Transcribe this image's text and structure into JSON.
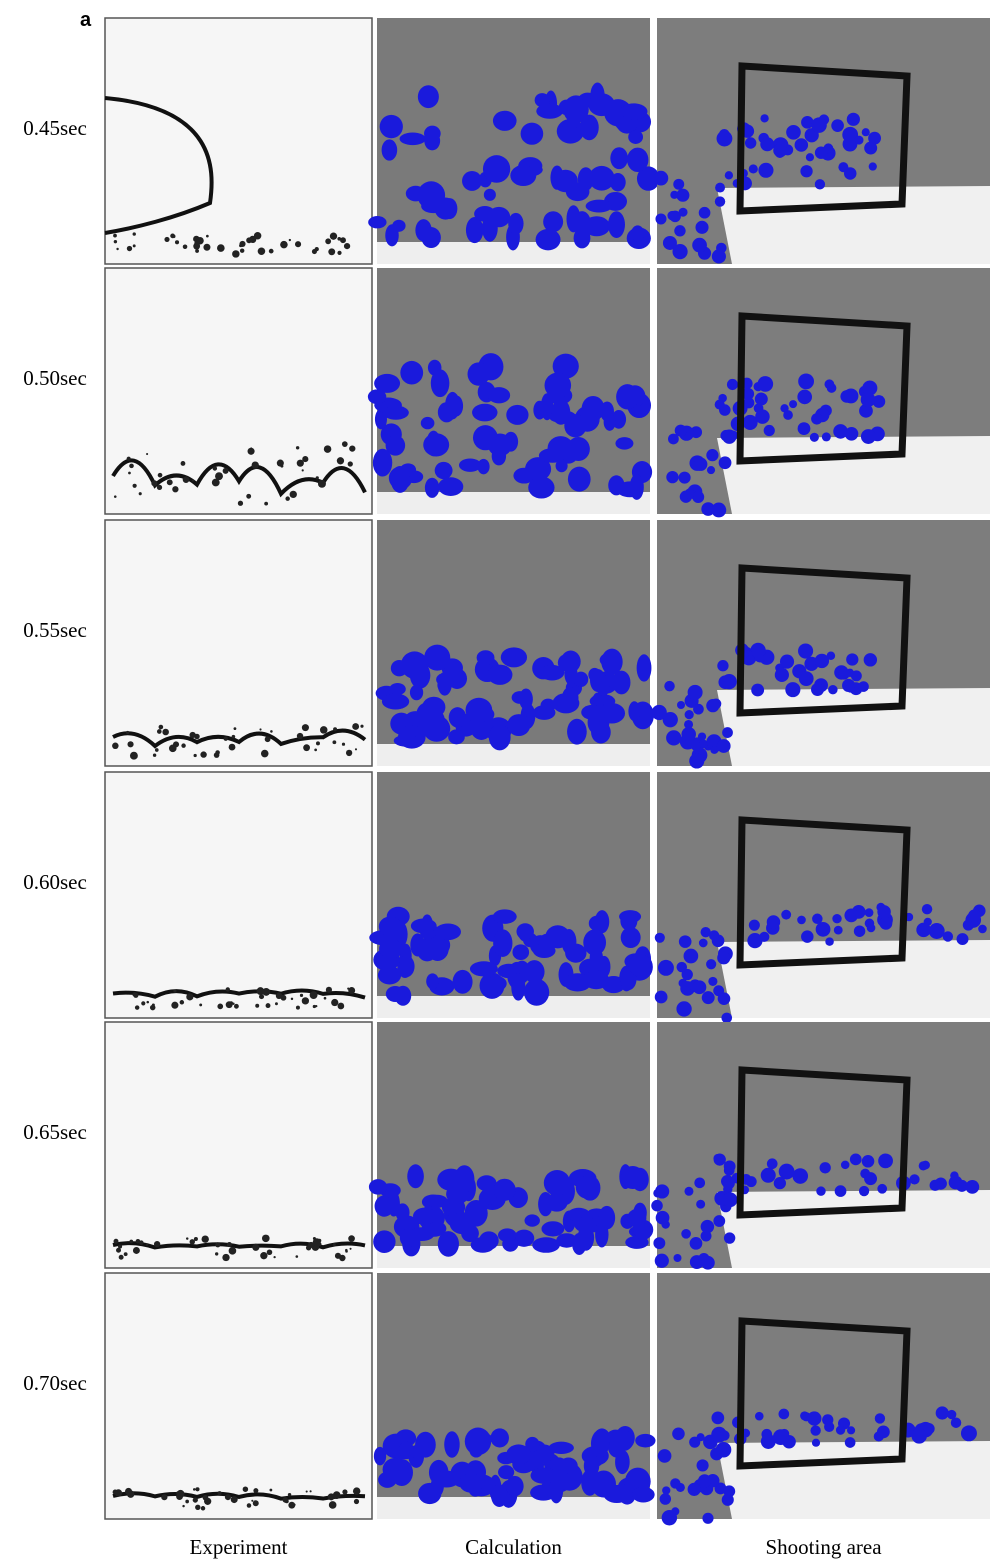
{
  "panel_label": "a",
  "rows": [
    "0.45sec",
    "0.50sec",
    "0.55sec",
    "0.60sec",
    "0.65sec",
    "0.70sec"
  ],
  "columns": [
    "Experiment",
    "Calculation",
    "Shooting area"
  ]
}
